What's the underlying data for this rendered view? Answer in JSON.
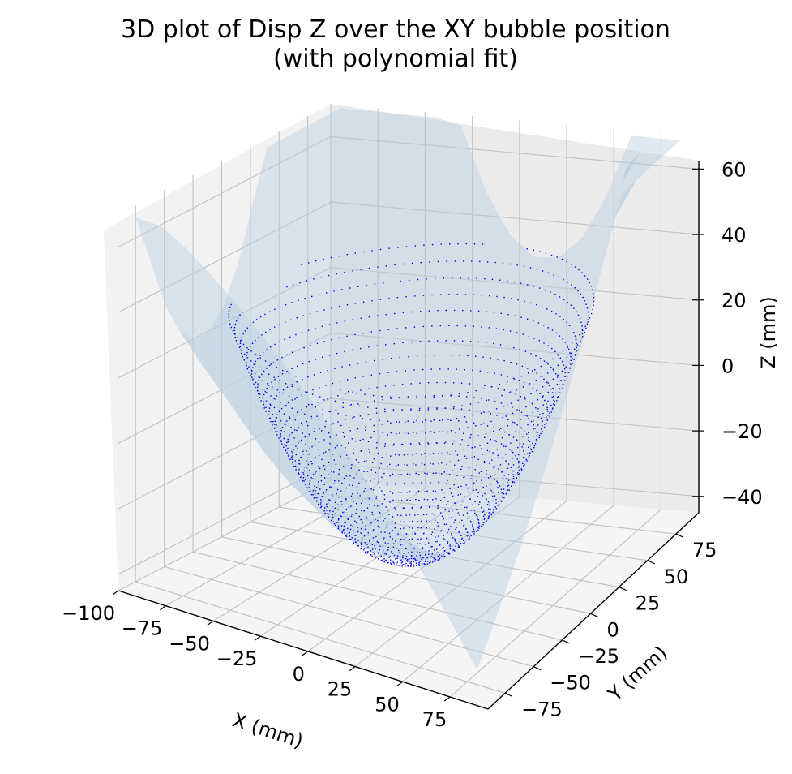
{
  "chart_data": {
    "type": "scatter",
    "subtype": "3d-scatter-with-surface",
    "title_line1": "3D plot of Disp Z over the XY bubble position",
    "title_line2": "(with polynomial fit)",
    "xlabel": "X (mm)",
    "ylabel": "Y (mm)",
    "zlabel": "Z (mm)",
    "xlim": [
      -100,
      95
    ],
    "ylim": [
      -90,
      95
    ],
    "zlim": [
      -45,
      70
    ],
    "x_ticks": [
      "−100",
      "−75",
      "−50",
      "−25",
      "0",
      "25",
      "50",
      "75"
    ],
    "y_ticks": [
      "−75",
      "−50",
      "−25",
      "0",
      "25",
      "50",
      "75"
    ],
    "z_ticks": [
      "−40",
      "−20",
      "0",
      "20",
      "40",
      "60"
    ],
    "grid": true,
    "series": [
      {
        "kind": "points",
        "color": "#0000ee",
        "description_values": "bowl-shaped point cloud, z ≈ 0.011·(x²+y²) − 40",
        "z_center": -40,
        "curvature": 0.011
      },
      {
        "kind": "surface",
        "color": "#b9cfe0",
        "opacity": 0.6
      }
    ]
  }
}
